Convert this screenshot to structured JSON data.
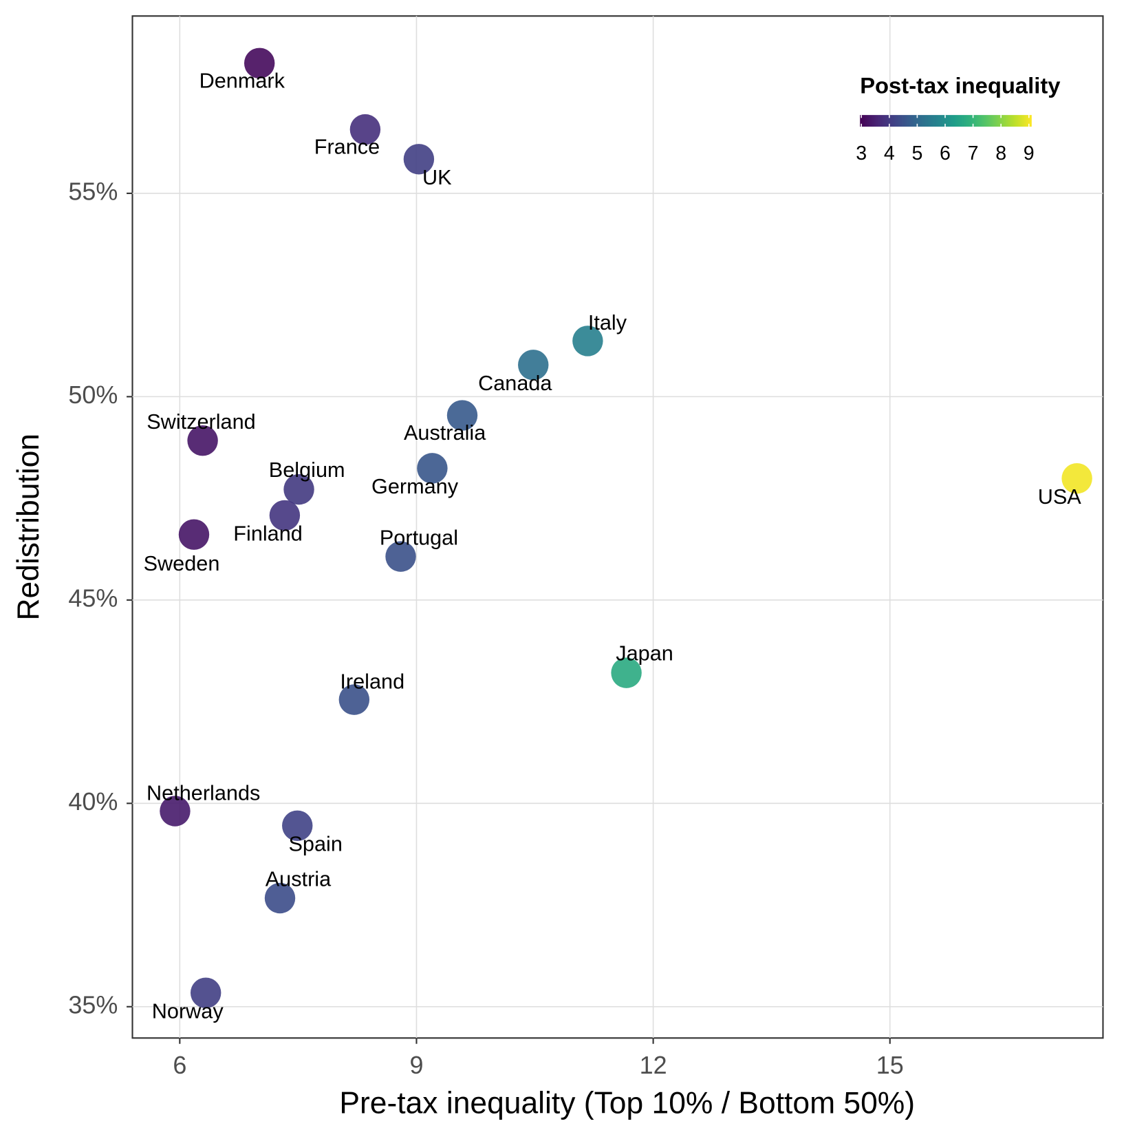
{
  "chart_data": {
    "type": "scatter",
    "x_label": "Pre-tax inequality (Top 10% / Bottom 50%)",
    "y_label": "Redistribution",
    "labels": [
      "Denmark",
      "France",
      "UK",
      "Italy",
      "Canada",
      "Australia",
      "Switzerland",
      "Germany",
      "Belgium",
      "Finland",
      "Sweden",
      "Portugal",
      "USA",
      "Japan",
      "Ireland",
      "Netherlands",
      "Spain",
      "Austria",
      "Norway"
    ],
    "x": [
      7.01,
      8.35,
      9.03,
      11.17,
      10.48,
      9.58,
      6.29,
      9.2,
      7.51,
      7.33,
      6.18,
      8.8,
      17.37,
      11.66,
      8.21,
      5.94,
      7.49,
      7.27,
      6.33
    ],
    "values": [
      58.2,
      56.57,
      55.84,
      51.37,
      50.78,
      49.54,
      48.92,
      48.24,
      47.72,
      47.08,
      46.61,
      46.07,
      47.99,
      43.21,
      42.55,
      39.81,
      39.45,
      37.67,
      35.34
    ],
    "color_values": [
      3.1,
      3.8,
      4.1,
      5.6,
      5.2,
      4.7,
      3.3,
      4.6,
      4.0,
      3.9,
      3.3,
      4.5,
      9.0,
      6.7,
      4.5,
      3.4,
      4.2,
      4.4,
      4.1
    ],
    "color_title": "Post-tax inequality",
    "color_lim": [
      2.95,
      9.1
    ],
    "color_ticks": [
      3,
      4,
      5,
      6,
      7,
      8,
      9
    ],
    "xlim": [
      5.4,
      17.7
    ],
    "xticks": [
      6,
      9,
      12,
      15
    ],
    "ylim": [
      34.23,
      59.36
    ],
    "yticks": [
      {
        "value": 35,
        "label": "35%"
      },
      {
        "value": 40,
        "label": "40%"
      },
      {
        "value": 45,
        "label": "45%"
      },
      {
        "value": 50,
        "label": "50%"
      },
      {
        "value": 55,
        "label": "55%"
      }
    ],
    "grid": true
  }
}
